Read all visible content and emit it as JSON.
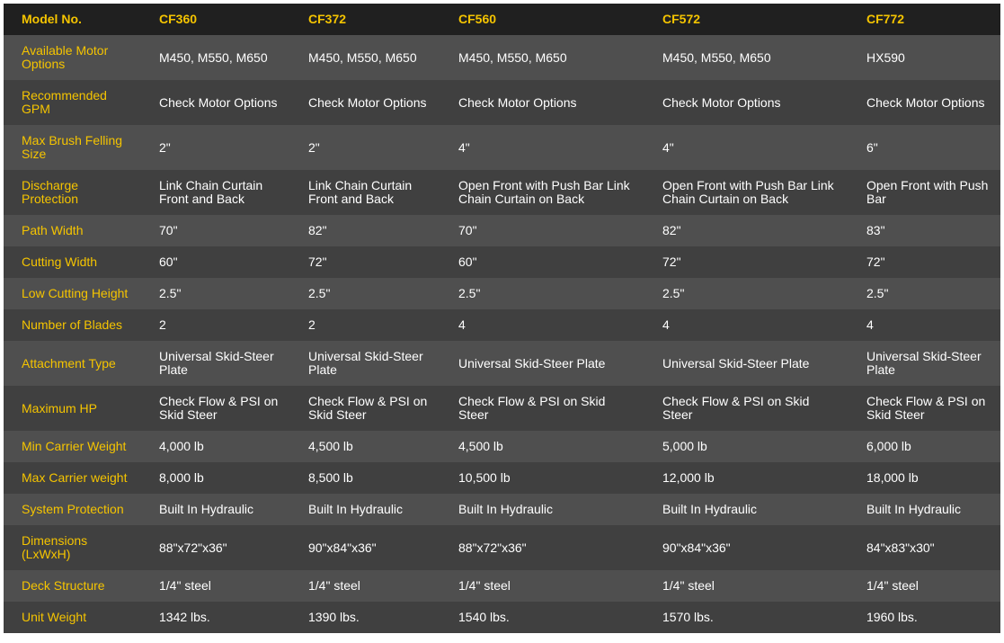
{
  "colors": {
    "accent": "#f5c400",
    "header_bg": "#202020",
    "row_light": "#4f4f4f",
    "row_dark": "#404040"
  },
  "header": [
    "Model No.",
    "CF360",
    "CF372",
    "CF560",
    "CF572",
    "CF772"
  ],
  "rows": [
    {
      "label": "Available Motor Options",
      "values": [
        "M450, M550, M650",
        "M450, M550, M650",
        "M450, M550, M650",
        "M450, M550, M650",
        "HX590"
      ]
    },
    {
      "label": "Recommended GPM",
      "values": [
        "Check Motor Options",
        "Check Motor Options",
        "Check Motor Options",
        "Check Motor Options",
        "Check Motor Options"
      ]
    },
    {
      "label": "Max Brush Felling Size",
      "values": [
        "2\"",
        "2\"",
        "4\"",
        "4\"",
        "6\""
      ]
    },
    {
      "label": "Discharge Protection",
      "values": [
        "Link Chain Curtain Front and Back",
        "Link Chain Curtain Front and Back",
        "Open Front with Push Bar Link Chain Curtain on Back",
        "Open Front with Push Bar Link Chain Curtain on Back",
        "Open Front with Push Bar"
      ]
    },
    {
      "label": "Path Width",
      "values": [
        "70\"",
        "82\"",
        "70\"",
        "82\"",
        "83\""
      ]
    },
    {
      "label": "Cutting Width",
      "values": [
        "60\"",
        "72\"",
        "60\"",
        "72\"",
        "72\""
      ]
    },
    {
      "label": "Low Cutting Height",
      "values": [
        "2.5\"",
        "2.5\"",
        "2.5\"",
        "2.5\"",
        "2.5\""
      ]
    },
    {
      "label": "Number of Blades",
      "values": [
        "2",
        "2",
        "4",
        "4",
        "4"
      ]
    },
    {
      "label": "Attachment Type",
      "values": [
        "Universal Skid-Steer Plate",
        "Universal Skid-Steer Plate",
        "Universal Skid-Steer Plate",
        "Universal Skid-Steer Plate",
        "Universal Skid-Steer Plate"
      ]
    },
    {
      "label": "Maximum HP",
      "values": [
        "Check Flow & PSI on Skid Steer",
        "Check Flow & PSI on Skid Steer",
        "Check Flow & PSI on Skid Steer",
        "Check Flow & PSI on Skid Steer",
        "Check Flow & PSI on Skid Steer"
      ]
    },
    {
      "label": "Min Carrier Weight",
      "values": [
        "4,000 lb",
        "4,500 lb",
        "4,500 lb",
        "5,000 lb",
        "6,000 lb"
      ]
    },
    {
      "label": "Max Carrier weight",
      "values": [
        "8,000 lb",
        "8,500 lb",
        "10,500 lb",
        "12,000 lb",
        "18,000 lb"
      ]
    },
    {
      "label": "System Protection",
      "values": [
        "Built In Hydraulic",
        "Built In Hydraulic",
        "Built In Hydraulic",
        "Built In Hydraulic",
        "Built In Hydraulic"
      ]
    },
    {
      "label": "Dimensions (LxWxH)",
      "values": [
        "88\"x72\"x36\"",
        "90\"x84\"x36\"",
        "88\"x72\"x36\"",
        "90\"x84\"x36\"",
        "84\"x83\"x30\""
      ]
    },
    {
      "label": "Deck Structure",
      "values": [
        "1/4\" steel",
        "1/4\" steel",
        "1/4\" steel",
        "1/4\" steel",
        "1/4\" steel"
      ]
    },
    {
      "label": "Unit Weight",
      "values": [
        "1342 lbs.",
        "1390 lbs.",
        "1540 lbs.",
        "1570 lbs.",
        "1960 lbs."
      ]
    }
  ]
}
